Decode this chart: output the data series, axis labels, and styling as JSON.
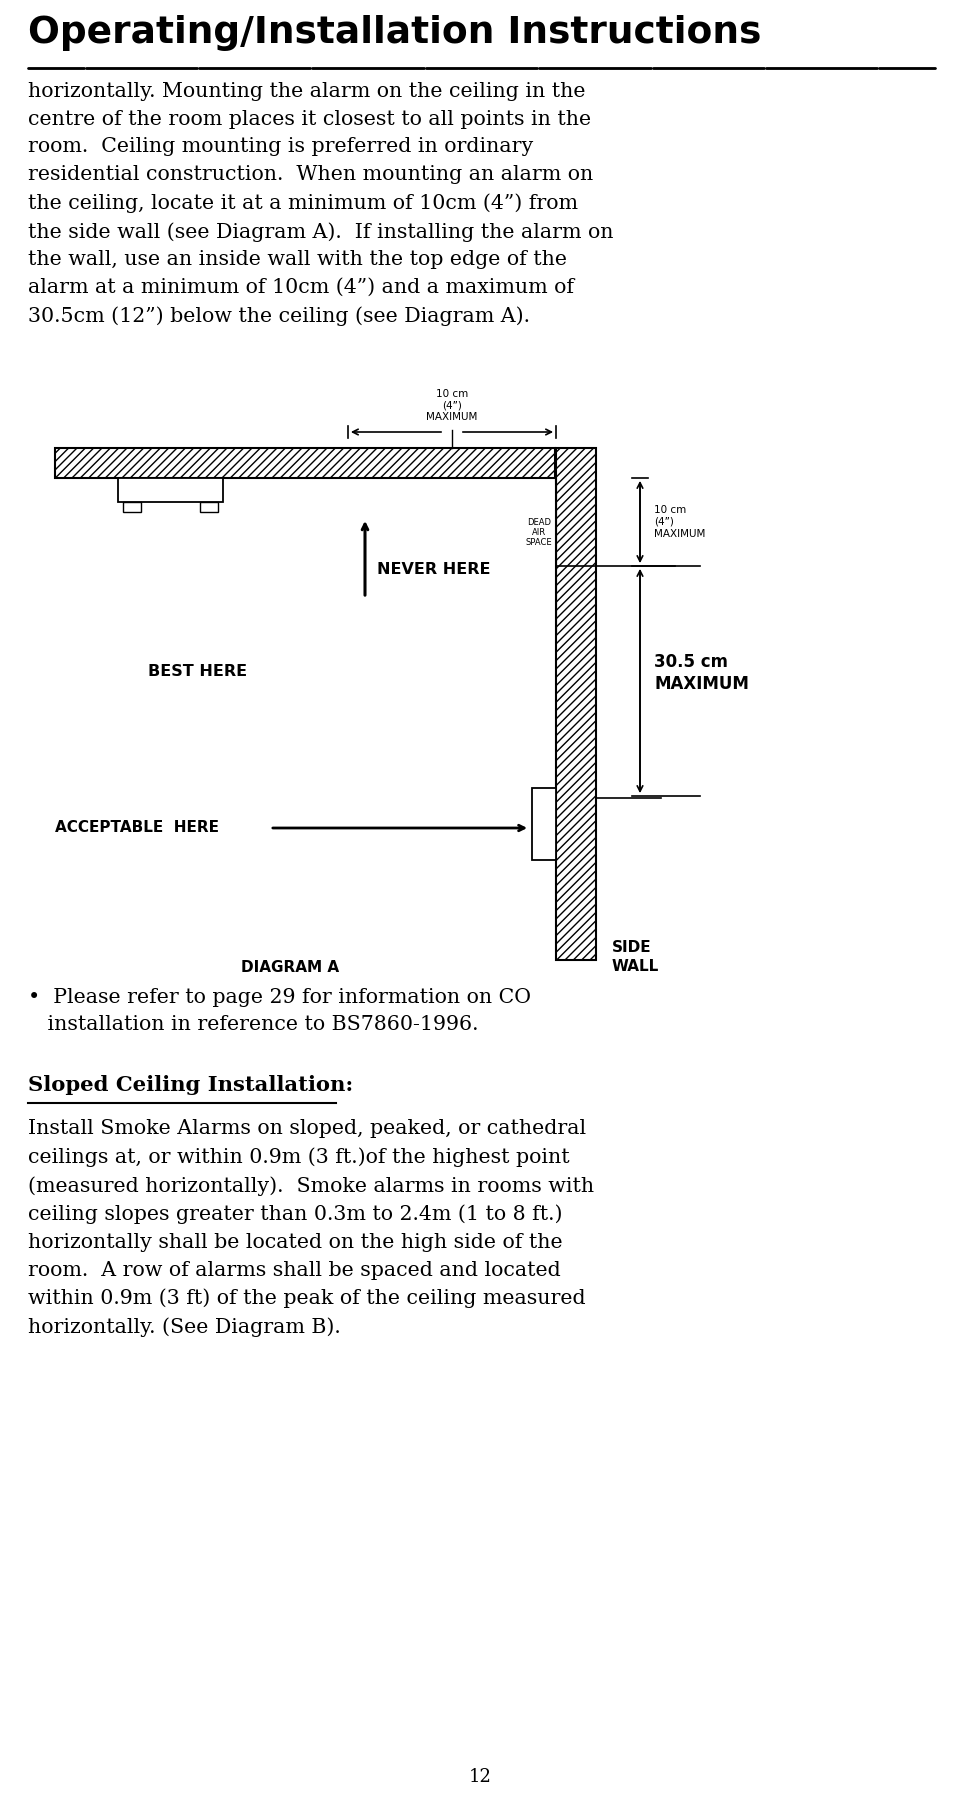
{
  "title": "Operating/Installation Instructions",
  "page_number": "12",
  "bg_color": "#ffffff",
  "text_color": "#000000",
  "para1_lines": [
    "horizontally. Mounting the alarm on the ceiling in the",
    "centre of the room places it closest to all points in the",
    "room.  Ceiling mounting is preferred in ordinary",
    "residential construction.  When mounting an alarm on",
    "the ceiling, locate it at a minimum of 10cm (4”) from",
    "the side wall (see Diagram A).  If installing the alarm on",
    "the wall, use an inside wall with the top edge of the",
    "alarm at a minimum of 10cm (4”) and a maximum of",
    "30.5cm (12”) below the ceiling (see Diagram A)."
  ],
  "sloped_heading": "Sloped Ceiling Installation:",
  "sloped_para_lines": [
    "Install Smoke Alarms on sloped, peaked, or cathedral",
    "ceilings at, or within 0.9m (3 ft.)of the highest point",
    "(measured horizontally).  Smoke alarms in rooms with",
    "ceiling slopes greater than 0.3m to 2.4m (1 to 8 ft.)",
    "horizontally shall be located on the high side of the",
    "room.  A row of alarms shall be spaced and located",
    "within 0.9m (3 ft) of the peak of the ceiling measured",
    "horizontally. (See Diagram B)."
  ],
  "bullet1": "Please refer to page 29 for information on CO installation in reference to BS7860-1996."
}
